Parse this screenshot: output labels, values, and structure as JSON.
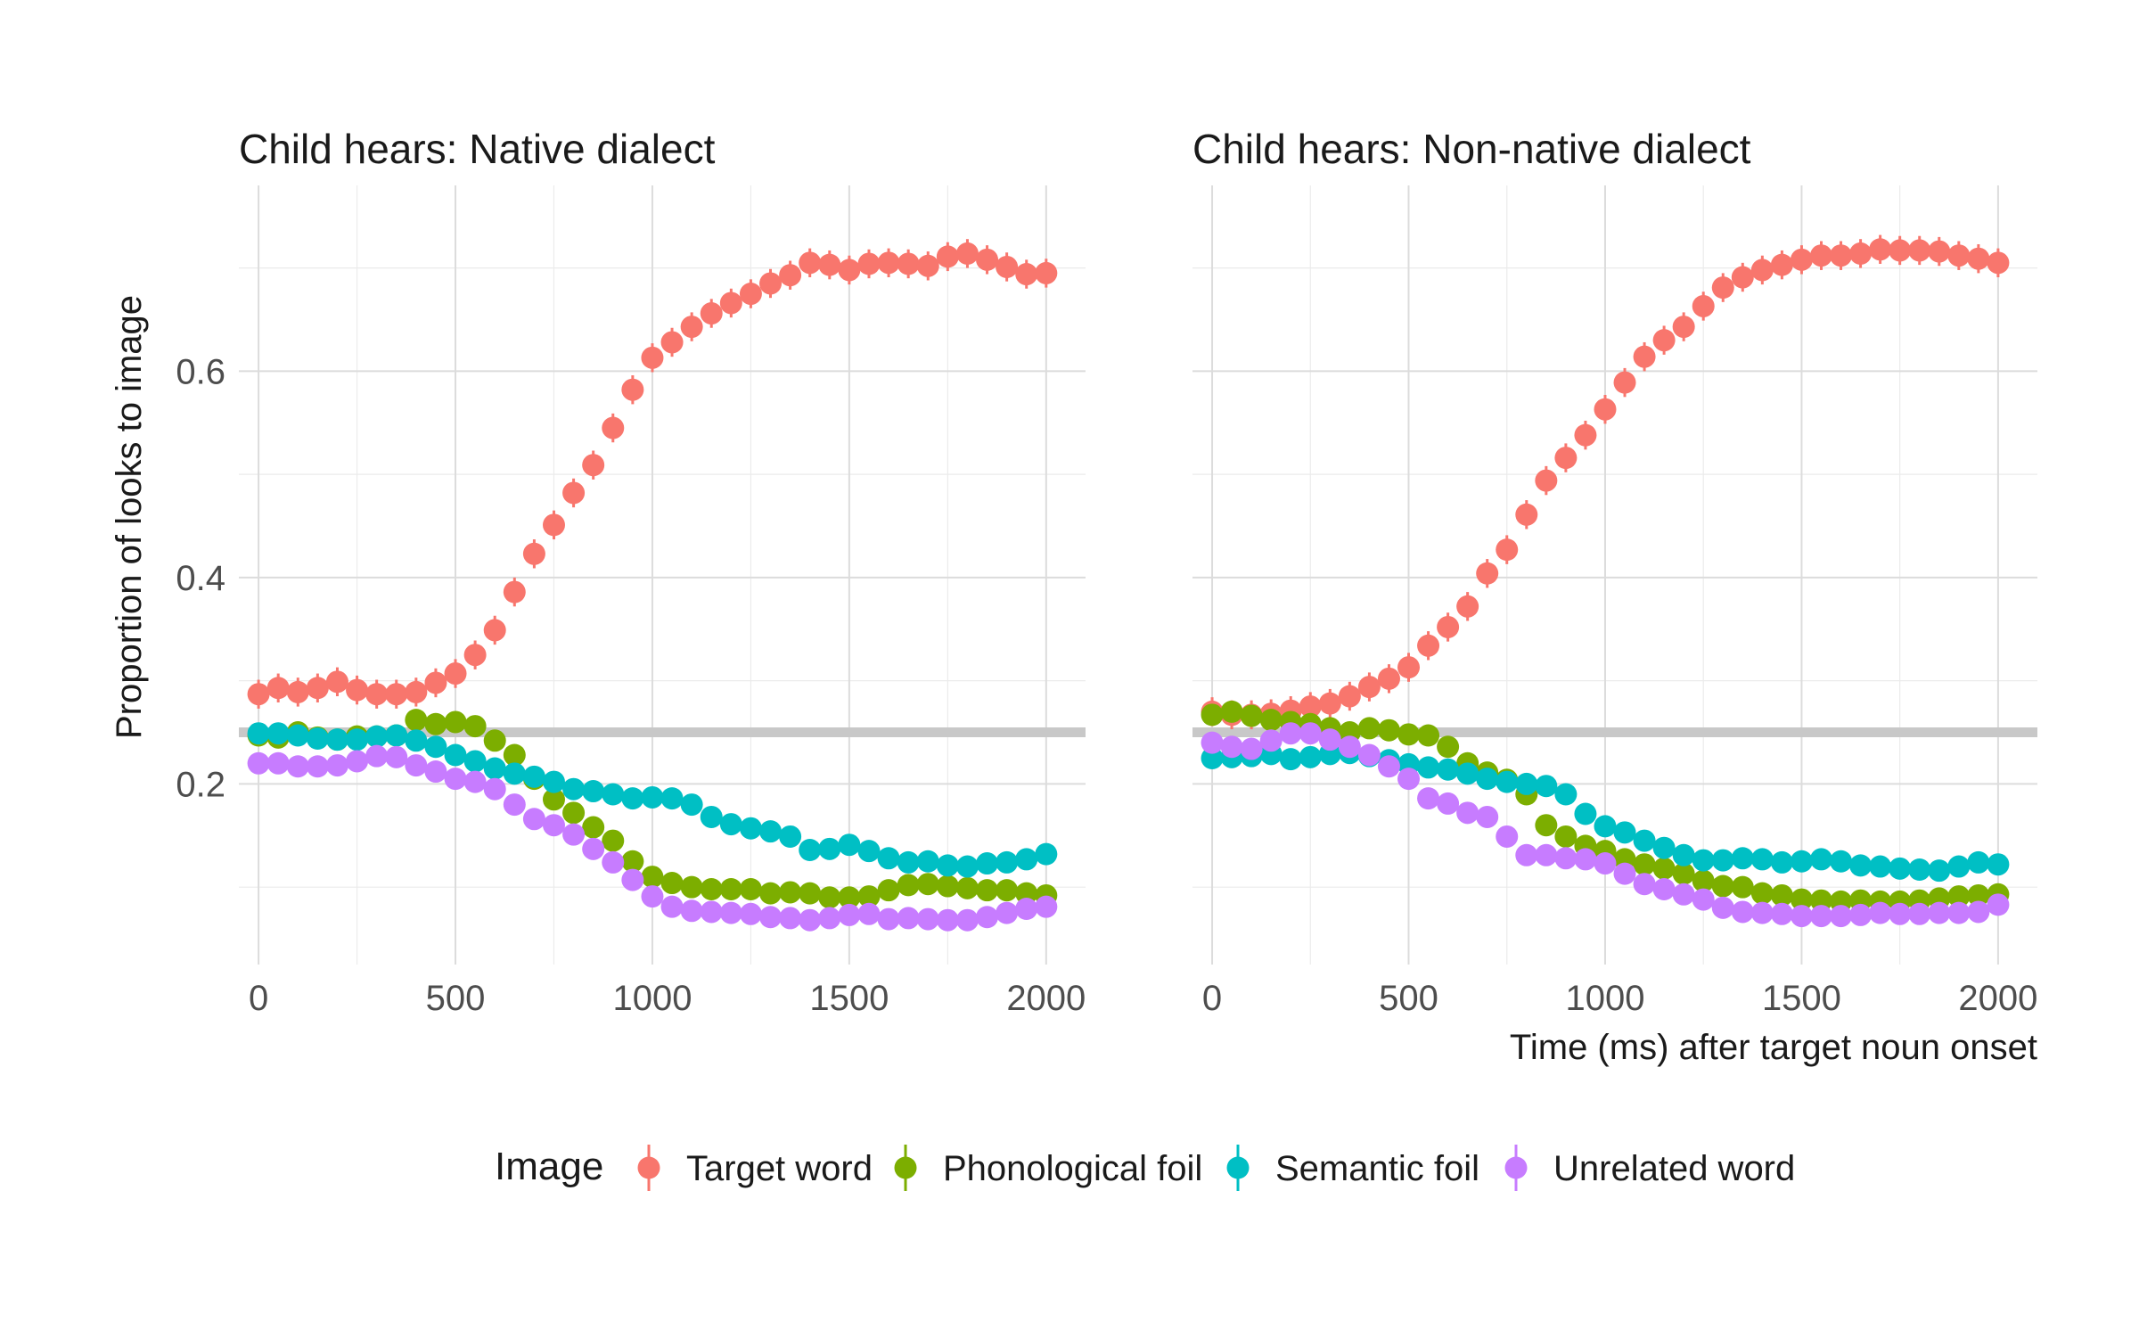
{
  "chart_data": {
    "type": "scatter",
    "ylabel": "Proportion of looks to image",
    "xlabel": "Time (ms) after target noun onset",
    "xlim": [
      -50,
      2100
    ],
    "ylim": [
      0.025,
      0.78
    ],
    "x_ticks": [
      "0",
      "500",
      "1000",
      "1500",
      "2000"
    ],
    "y_ticks": [
      "0.2",
      "0.4",
      "0.6"
    ],
    "reference_line": 0.25,
    "grid": true,
    "error_bars": true,
    "legend": {
      "title": "Image",
      "position": "bottom",
      "entries": [
        "Target word",
        "Phonological foil",
        "Semantic foil",
        "Unrelated word"
      ]
    },
    "colors": {
      "Target word": "#F8766D",
      "Phonological foil": "#7CAE00",
      "Semantic foil": "#00BFC4",
      "Unrelated word": "#C77CFF"
    },
    "panels": [
      {
        "title": "Child hears: Native dialect",
        "x": [
          0,
          50,
          100,
          150,
          200,
          250,
          300,
          350,
          400,
          450,
          500,
          550,
          600,
          650,
          700,
          750,
          800,
          850,
          900,
          950,
          1000,
          1050,
          1100,
          1150,
          1200,
          1250,
          1300,
          1350,
          1400,
          1450,
          1500,
          1550,
          1600,
          1650,
          1700,
          1750,
          1800,
          1850,
          1900,
          1950,
          2000
        ],
        "series": [
          {
            "name": "Target word",
            "values": [
              0.287,
              0.293,
              0.289,
              0.293,
              0.299,
              0.291,
              0.287,
              0.287,
              0.289,
              0.298,
              0.307,
              0.325,
              0.349,
              0.386,
              0.423,
              0.451,
              0.482,
              0.509,
              0.545,
              0.582,
              0.613,
              0.628,
              0.643,
              0.656,
              0.666,
              0.675,
              0.685,
              0.693,
              0.705,
              0.703,
              0.698,
              0.704,
              0.705,
              0.704,
              0.702,
              0.711,
              0.714,
              0.708,
              0.701,
              0.694,
              0.695
            ],
            "err": 0.014
          },
          {
            "name": "Phonological foil",
            "values": [
              0.247,
              0.245,
              0.25,
              0.245,
              0.243,
              0.246,
              0.246,
              0.247,
              0.262,
              0.258,
              0.26,
              0.256,
              0.242,
              0.228,
              0.205,
              0.185,
              0.172,
              0.158,
              0.145,
              0.125,
              0.11,
              0.104,
              0.1,
              0.098,
              0.098,
              0.098,
              0.094,
              0.095,
              0.094,
              0.09,
              0.09,
              0.091,
              0.097,
              0.102,
              0.103,
              0.101,
              0.099,
              0.097,
              0.097,
              0.094,
              0.092
            ],
            "err": 0.009
          },
          {
            "name": "Semantic foil",
            "values": [
              0.249,
              0.249,
              0.247,
              0.244,
              0.243,
              0.243,
              0.246,
              0.247,
              0.242,
              0.236,
              0.228,
              0.222,
              0.215,
              0.21,
              0.207,
              0.202,
              0.195,
              0.193,
              0.19,
              0.186,
              0.187,
              0.186,
              0.18,
              0.168,
              0.161,
              0.157,
              0.154,
              0.149,
              0.136,
              0.137,
              0.141,
              0.135,
              0.128,
              0.124,
              0.125,
              0.121,
              0.12,
              0.123,
              0.124,
              0.127,
              0.132
            ],
            "err": 0.01
          },
          {
            "name": "Unrelated word",
            "values": [
              0.22,
              0.22,
              0.217,
              0.217,
              0.218,
              0.222,
              0.227,
              0.226,
              0.218,
              0.212,
              0.205,
              0.202,
              0.195,
              0.18,
              0.166,
              0.16,
              0.151,
              0.137,
              0.124,
              0.107,
              0.091,
              0.081,
              0.077,
              0.076,
              0.075,
              0.074,
              0.071,
              0.07,
              0.068,
              0.07,
              0.073,
              0.074,
              0.069,
              0.07,
              0.069,
              0.068,
              0.068,
              0.071,
              0.075,
              0.079,
              0.081
            ],
            "err": 0.008
          }
        ]
      },
      {
        "title": "Child hears: Non-native dialect",
        "x": [
          0,
          50,
          100,
          150,
          200,
          250,
          300,
          350,
          400,
          450,
          500,
          550,
          600,
          650,
          700,
          750,
          800,
          850,
          900,
          950,
          1000,
          1050,
          1100,
          1150,
          1200,
          1250,
          1300,
          1350,
          1400,
          1450,
          1500,
          1550,
          1600,
          1650,
          1700,
          1750,
          1800,
          1850,
          1900,
          1950,
          2000
        ],
        "series": [
          {
            "name": "Target word",
            "values": [
              0.27,
              0.267,
              0.267,
              0.268,
              0.271,
              0.275,
              0.278,
              0.285,
              0.294,
              0.302,
              0.313,
              0.334,
              0.352,
              0.372,
              0.404,
              0.427,
              0.461,
              0.494,
              0.516,
              0.538,
              0.563,
              0.589,
              0.614,
              0.63,
              0.643,
              0.663,
              0.681,
              0.691,
              0.698,
              0.703,
              0.708,
              0.712,
              0.712,
              0.714,
              0.718,
              0.717,
              0.717,
              0.716,
              0.712,
              0.709,
              0.705
            ],
            "err": 0.014
          },
          {
            "name": "Phonological foil",
            "values": [
              0.267,
              0.27,
              0.266,
              0.262,
              0.26,
              0.258,
              0.254,
              0.25,
              0.254,
              0.252,
              0.248,
              0.247,
              0.236,
              0.22,
              0.211,
              0.204,
              0.19,
              0.16,
              0.149,
              0.14,
              0.135,
              0.127,
              0.122,
              0.118,
              0.113,
              0.106,
              0.101,
              0.1,
              0.094,
              0.092,
              0.088,
              0.087,
              0.086,
              0.087,
              0.086,
              0.086,
              0.087,
              0.089,
              0.091,
              0.092,
              0.093
            ],
            "err": 0.009
          },
          {
            "name": "Semantic foil",
            "values": [
              0.225,
              0.226,
              0.227,
              0.229,
              0.224,
              0.226,
              0.229,
              0.23,
              0.227,
              0.223,
              0.219,
              0.216,
              0.214,
              0.21,
              0.205,
              0.202,
              0.2,
              0.198,
              0.19,
              0.171,
              0.159,
              0.153,
              0.145,
              0.138,
              0.131,
              0.126,
              0.126,
              0.128,
              0.127,
              0.124,
              0.125,
              0.127,
              0.125,
              0.121,
              0.12,
              0.118,
              0.117,
              0.116,
              0.12,
              0.124,
              0.122
            ],
            "err": 0.009
          },
          {
            "name": "Unrelated word",
            "values": [
              0.24,
              0.236,
              0.234,
              0.242,
              0.249,
              0.249,
              0.243,
              0.236,
              0.228,
              0.217,
              0.205,
              0.186,
              0.181,
              0.172,
              0.168,
              0.149,
              0.131,
              0.131,
              0.128,
              0.127,
              0.123,
              0.113,
              0.103,
              0.098,
              0.093,
              0.088,
              0.08,
              0.076,
              0.075,
              0.074,
              0.072,
              0.072,
              0.072,
              0.073,
              0.075,
              0.074,
              0.074,
              0.075,
              0.075,
              0.076,
              0.083
            ],
            "err": 0.008
          }
        ]
      }
    ]
  }
}
